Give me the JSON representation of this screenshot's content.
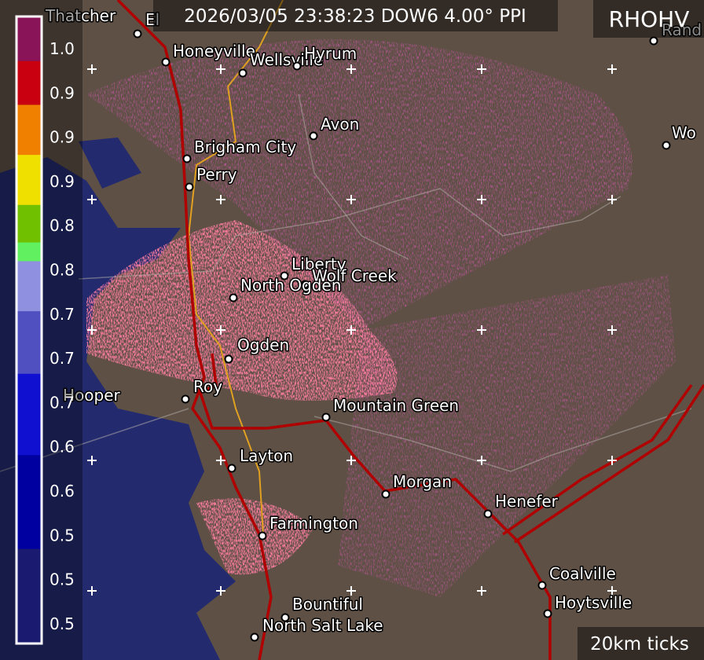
{
  "header": {
    "timestamp": "2026/03/05 23:38:23 DOW6 4.00° PPI",
    "product": "RHOHV"
  },
  "colorbar": {
    "labels": [
      "1.0",
      "0.9",
      "0.9",
      "0.9",
      "0.8",
      "0.8",
      "0.7",
      "0.7",
      "0.7",
      "0.6",
      "0.6",
      "0.5",
      "0.5",
      "0.5"
    ]
  },
  "cities": [
    {
      "name": "Thatcher"
    },
    {
      "name": "El"
    },
    {
      "name": "Honeyville"
    },
    {
      "name": "Wellsville"
    },
    {
      "name": "Hyrum"
    },
    {
      "name": "Avon"
    },
    {
      "name": "Brigham City"
    },
    {
      "name": "Perry"
    },
    {
      "name": "Liberty"
    },
    {
      "name": "Wolf Creek"
    },
    {
      "name": "North Ogden"
    },
    {
      "name": "Ogden"
    },
    {
      "name": "Roy"
    },
    {
      "name": "Hooper"
    },
    {
      "name": "Mountain Green"
    },
    {
      "name": "Layton"
    },
    {
      "name": "Morgan"
    },
    {
      "name": "Henefer"
    },
    {
      "name": "Farmington"
    },
    {
      "name": "Coalville"
    },
    {
      "name": "Hoytsville"
    },
    {
      "name": "Bountiful"
    },
    {
      "name": "North Salt Lake"
    },
    {
      "name": "Rand"
    },
    {
      "name": "Wo"
    }
  ],
  "footer": {
    "scale": "20km ticks"
  }
}
